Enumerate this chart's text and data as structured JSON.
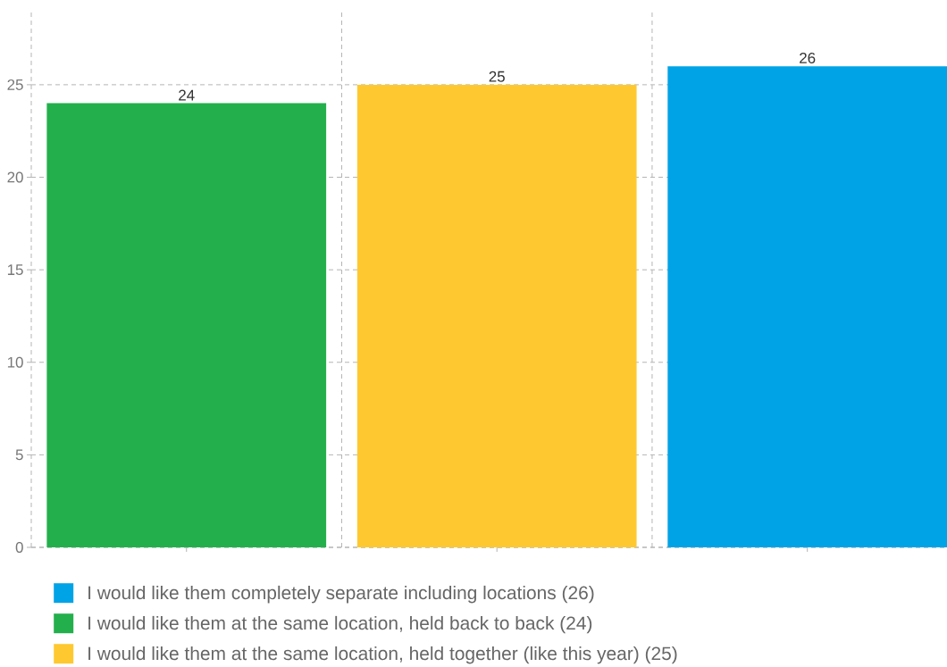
{
  "chart_data": {
    "type": "bar",
    "categories": [
      null,
      null,
      null
    ],
    "series": [
      {
        "name": "I would like them completely separate including locations (26)",
        "color": "#00a3e6",
        "values": [
          null,
          null,
          26
        ]
      },
      {
        "name": "I would like them at the same location, held back to back (24)",
        "color": "#23b04c",
        "values": [
          24,
          null,
          null
        ]
      },
      {
        "name": "I would like them at the same location, held together (like this year) (25)",
        "color": "#fec930",
        "values": [
          null,
          25,
          null
        ]
      }
    ],
    "ylim": [
      0,
      29
    ],
    "yticks": [
      0,
      5,
      10,
      15,
      20,
      25
    ],
    "grid": true,
    "legend": "bottom",
    "data_labels": true
  }
}
